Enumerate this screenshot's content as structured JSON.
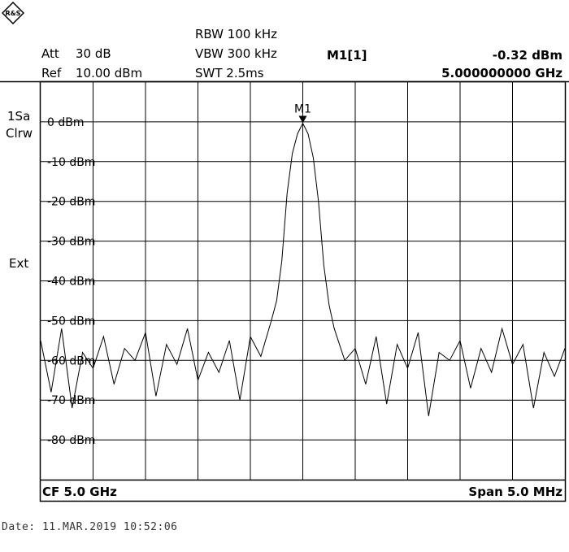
{
  "header": {
    "att_label": "Att",
    "att_value": "30 dB",
    "ref_label": "Ref",
    "ref_value": "10.00 dBm",
    "rbw": "RBW 100 kHz",
    "vbw": "VBW 300 kHz",
    "swt": "SWT 2.5ms",
    "marker_name": "M1[1]",
    "marker_level": "-0.32 dBm",
    "marker_freq": "5.000000000 GHz"
  },
  "side_labels": {
    "trace_mode_1": "1Sa",
    "trace_mode_2": "Clrw",
    "ext": "Ext"
  },
  "footer": {
    "cf": "CF 5.0 GHz",
    "span": "Span 5.0 MHz",
    "date": "Date: 11.MAR.2019  10:52:06"
  },
  "colors": {
    "trace": "#000000",
    "grid": "#000000",
    "background": "#ffffff"
  },
  "chart_data": {
    "type": "line",
    "xlabel": "",
    "ylabel": "",
    "xlim": [
      4997.5,
      5002.5
    ],
    "x_units": "MHz",
    "ylim": [
      -90,
      10
    ],
    "yticks": [
      0,
      -10,
      -20,
      -30,
      -40,
      -50,
      -60,
      -70,
      -80
    ],
    "ytick_labels": [
      "0 dBm",
      "-10 dBm",
      "-20 dBm",
      "-30 dBm",
      "-40 dBm",
      "-50 dBm",
      "-60 dBm",
      "-70 dBm",
      "-80 dBm"
    ],
    "grid": true,
    "marker": {
      "label": "M1",
      "x": 5000.0,
      "y": -0.32
    },
    "series": [
      {
        "x": [
          4997.5,
          4997.6,
          4997.7,
          4997.8,
          4997.9,
          4998.0,
          4998.1,
          4998.2,
          4998.3,
          4998.4,
          4998.5,
          4998.6,
          4998.7,
          4998.8,
          4998.9,
          4999.0,
          4999.1,
          4999.2,
          4999.3,
          4999.4,
          4999.5,
          4999.6,
          4999.7,
          4999.75,
          4999.8,
          4999.85,
          4999.9,
          4999.95,
          5000.0,
          5000.05,
          5000.1,
          5000.15,
          5000.2,
          5000.25,
          5000.3,
          5000.4,
          5000.5,
          5000.6,
          5000.7,
          5000.8,
          5000.9,
          5001.0,
          5001.1,
          5001.2,
          5001.3,
          5001.4,
          5001.5,
          5001.6,
          5001.7,
          5001.8,
          5001.9,
          5002.0,
          5002.1,
          5002.2,
          5002.3,
          5002.4,
          5002.5
        ],
        "y": [
          -55,
          -68,
          -52,
          -72,
          -58,
          -62,
          -54,
          -66,
          -57,
          -60,
          -53,
          -69,
          -56,
          -61,
          -52,
          -65,
          -58,
          -63,
          -55,
          -70,
          -54,
          -59,
          -50,
          -45,
          -35,
          -18,
          -8,
          -3,
          -0.32,
          -3,
          -9,
          -20,
          -36,
          -46,
          -52,
          -60,
          -57,
          -66,
          -54,
          -71,
          -56,
          -62,
          -53,
          -74,
          -58,
          -60,
          -55,
          -67,
          -57,
          -63,
          -52,
          -61,
          -56,
          -72,
          -58,
          -64,
          -57
        ]
      }
    ]
  }
}
